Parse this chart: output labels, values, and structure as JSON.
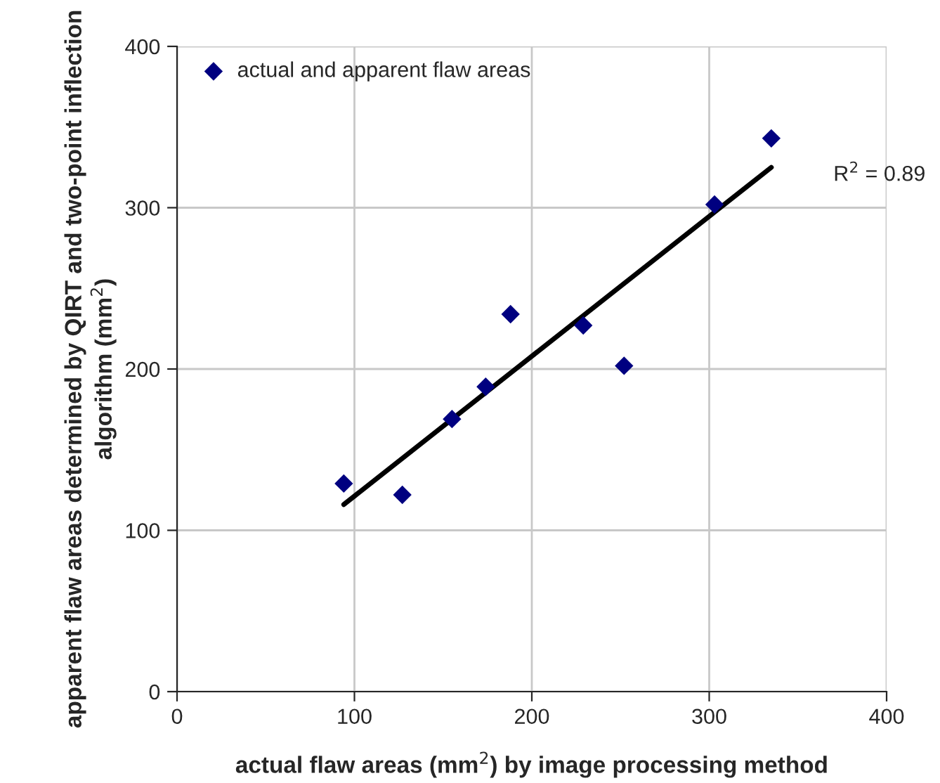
{
  "chart_data": {
    "type": "scatter",
    "xlabel": "actual flaw areas (mm$^{2}$) by image processing method",
    "ylabel": "apparent flaw areas determined by QIRT and two-point inflection algorithm (mm$^{2}$)",
    "series": [
      {
        "name": "actual and apparent flaw areas",
        "color": "#000080",
        "marker": "diamond",
        "x": [
          94,
          127,
          155,
          174,
          188,
          229,
          252,
          303,
          335
        ],
        "values": [
          129,
          122,
          169,
          189,
          234,
          227,
          202,
          302,
          343
        ]
      },
      {
        "type": "line",
        "color": "#000000",
        "marker": "none",
        "x": [
          94,
          335
        ],
        "values": [
          116,
          325
        ]
      }
    ],
    "annotations": [
      "R$^{2}$ = 0.89"
    ],
    "xlim": [
      0,
      400
    ],
    "xticks": [
      0,
      100,
      200,
      300,
      400
    ],
    "ylim": [
      0,
      400
    ],
    "yticks": [
      0,
      100,
      200,
      300,
      400
    ],
    "grid": true,
    "legend": "top left"
  }
}
